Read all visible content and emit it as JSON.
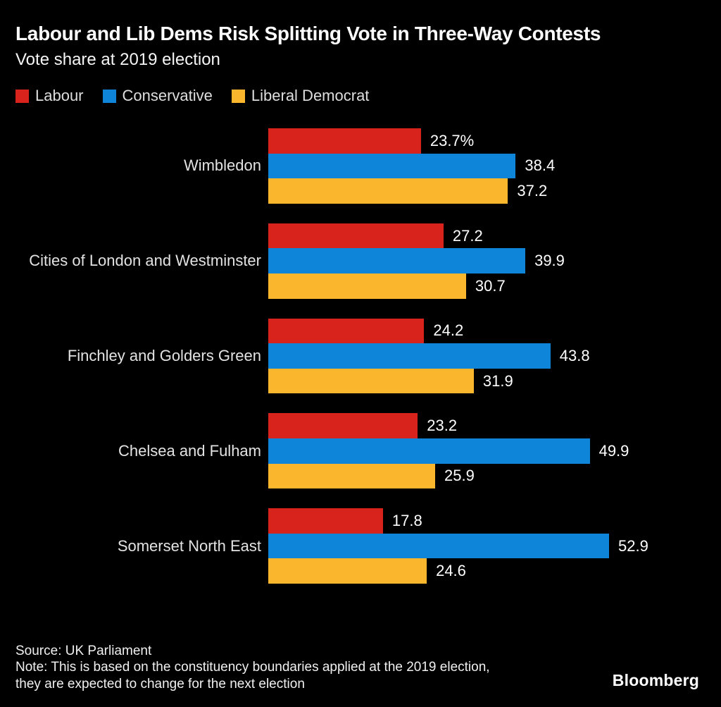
{
  "chart_data": {
    "type": "bar",
    "orientation": "horizontal",
    "title": "Labour and Lib Dems Risk Splitting Vote in Three-Way Contests",
    "subtitle": "Vote share at 2019 election",
    "categories": [
      "Wimbledon",
      "Cities of London and Westminster",
      "Finchley and Golders Green",
      "Chelsea and Fulham",
      "Somerset North East"
    ],
    "series": [
      {
        "name": "Labour",
        "color": "#d8231d",
        "values": [
          23.7,
          27.2,
          24.2,
          23.2,
          17.8
        ],
        "labels": [
          "23.7%",
          "27.2",
          "24.2",
          "23.2",
          "17.8"
        ]
      },
      {
        "name": "Conservative",
        "color": "#0e85d8",
        "values": [
          38.4,
          39.9,
          43.8,
          49.9,
          52.9
        ],
        "labels": [
          "38.4",
          "39.9",
          "43.8",
          "49.9",
          "52.9"
        ]
      },
      {
        "name": "Liberal Democrat",
        "color": "#fab62d",
        "values": [
          37.2,
          30.7,
          31.9,
          25.9,
          24.6
        ],
        "labels": [
          "37.2",
          "30.7",
          "31.9",
          "25.9",
          "24.6"
        ]
      }
    ],
    "xlim": [
      0,
      55
    ],
    "grid": false,
    "axis_lines": false,
    "legend_position": "top-left",
    "value_labels": "outside-end"
  },
  "footer": {
    "source": "Source: UK Parliament",
    "note_line1": "Note: This is based on the constituency boundaries applied at the 2019 election,",
    "note_line2": "they are expected to change for the next election",
    "logo": "Bloomberg"
  }
}
